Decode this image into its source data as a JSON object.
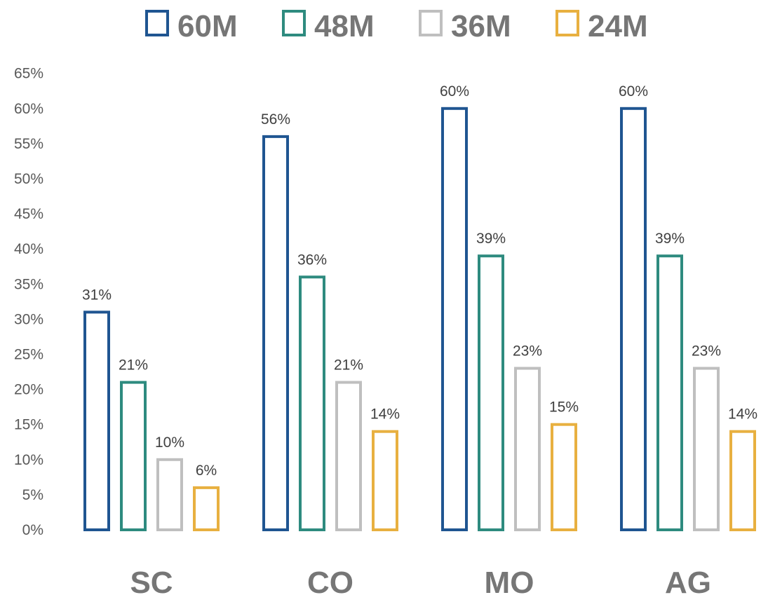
{
  "chart_data": {
    "type": "bar",
    "categories": [
      "SC",
      "CO",
      "MO",
      "AG"
    ],
    "series": [
      {
        "name": "60M",
        "color": "#1f5591",
        "values": [
          31,
          56,
          60,
          60
        ],
        "labels": [
          "31%",
          "56%",
          "60%",
          "60%"
        ]
      },
      {
        "name": "48M",
        "color": "#2e8b7f",
        "values": [
          21,
          36,
          39,
          39
        ],
        "labels": [
          "21%",
          "36%",
          "39%",
          "39%"
        ]
      },
      {
        "name": "36M",
        "color": "#bfbfbf",
        "values": [
          10,
          21,
          23,
          23
        ],
        "labels": [
          "10%",
          "21%",
          "23%",
          "23%"
        ]
      },
      {
        "name": "24M",
        "color": "#e8b040",
        "values": [
          6,
          14,
          15,
          14
        ],
        "labels": [
          "6%",
          "14%",
          "15%",
          "14%"
        ]
      }
    ],
    "yticks": [
      "0%",
      "5%",
      "10%",
      "15%",
      "20%",
      "25%",
      "30%",
      "35%",
      "40%",
      "45%",
      "50%",
      "55%",
      "60%",
      "65%"
    ],
    "ylim": [
      0,
      65
    ],
    "bar_style": "outlined",
    "grid": false,
    "legend_position": "top-center"
  }
}
